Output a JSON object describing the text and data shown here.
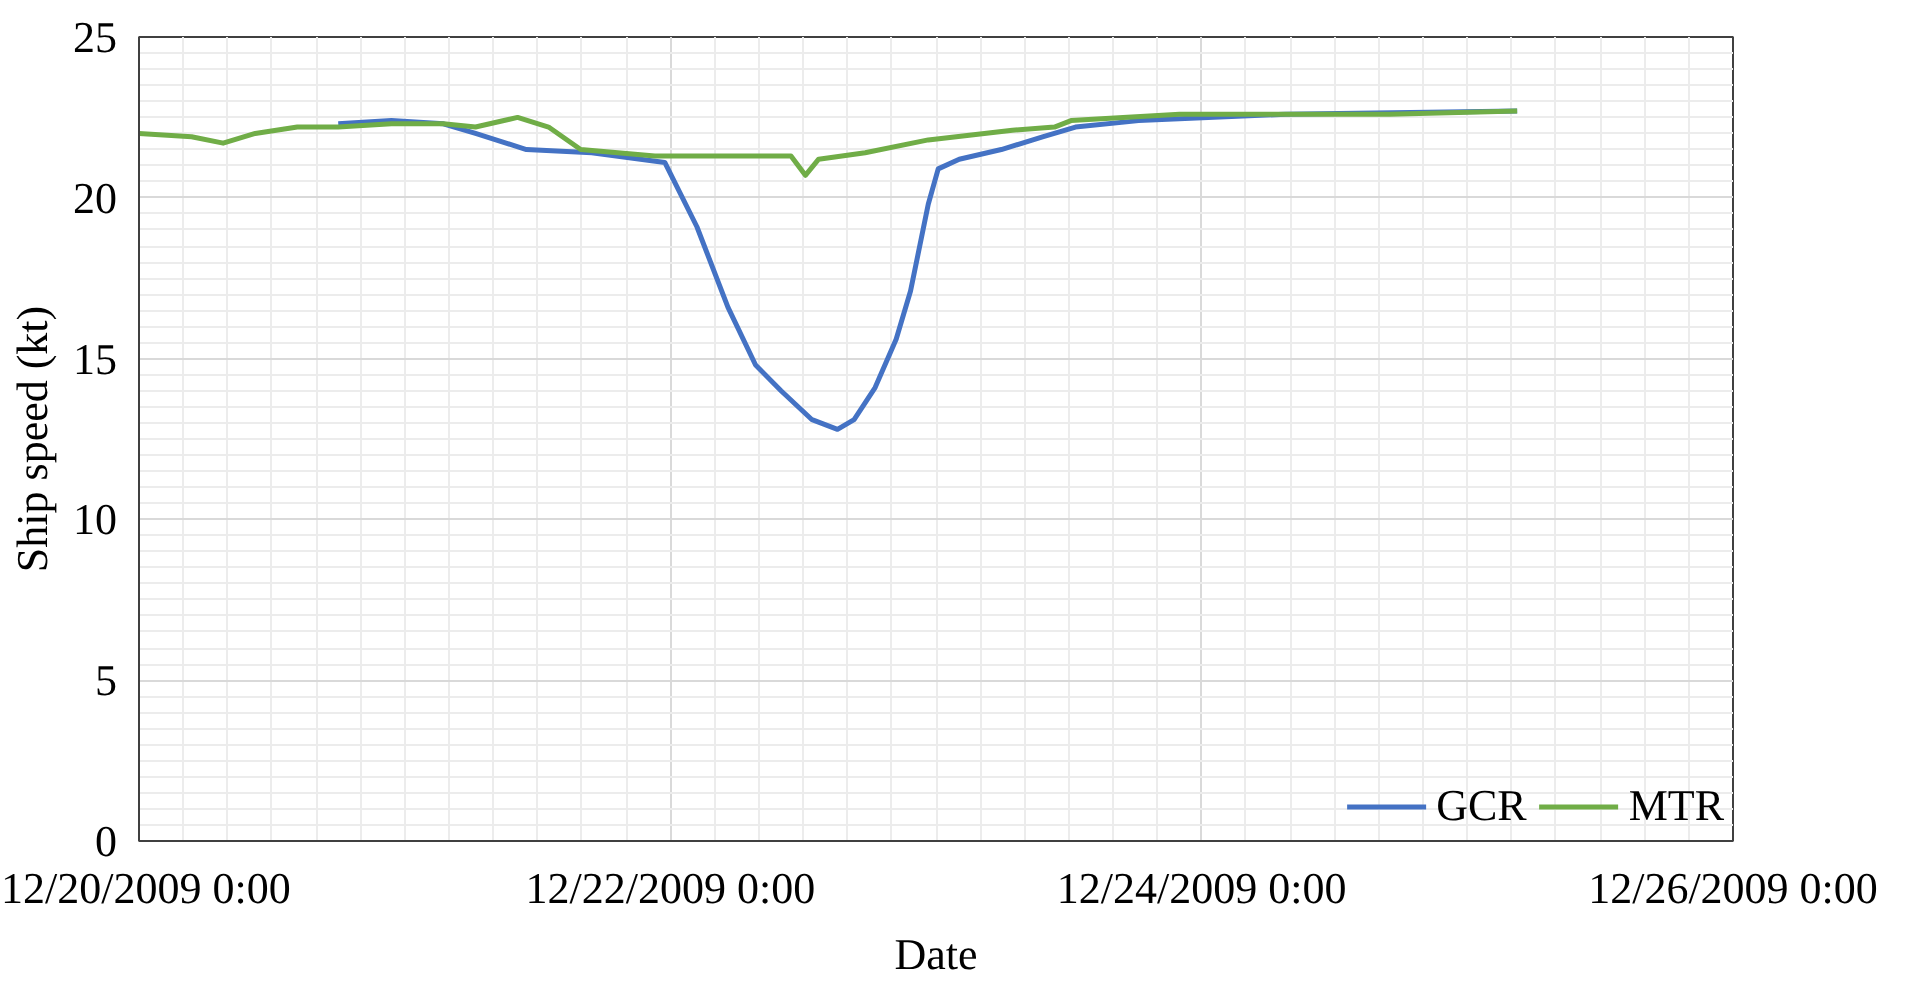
{
  "chart_data": {
    "type": "line",
    "xlabel": "Date",
    "ylabel": "Ship speed (kt)",
    "xlim": [
      "2009-12-20T00:00",
      "2009-12-26T00:00"
    ],
    "xticks": [
      {
        "value": "2009-12-20T00:00",
        "label": "12/20/2009 0:00"
      },
      {
        "value": "2009-12-22T00:00",
        "label": "12/22/2009 0:00"
      },
      {
        "value": "2009-12-24T00:00",
        "label": "12/24/2009 0:00"
      },
      {
        "value": "2009-12-26T00:00",
        "label": "12/26/2009 0:00"
      }
    ],
    "ylim": [
      0,
      25
    ],
    "yticks": [
      0,
      5,
      10,
      15,
      20,
      25
    ],
    "grid": true,
    "legend": "bottom right",
    "line_style": "solid",
    "series": [
      {
        "name": "GCR",
        "color": "#4472c4",
        "x": [
          "2009-12-20T18:00",
          "2009-12-20T22:48",
          "2009-12-21T03:30",
          "2009-12-21T06:24",
          "2009-12-21T11:00",
          "2009-12-21T16:54",
          "2009-12-21T23:30",
          "2009-12-22T02:24",
          "2009-12-22T05:12",
          "2009-12-22T07:42",
          "2009-12-22T10:00",
          "2009-12-22T12:48",
          "2009-12-22T15:06",
          "2009-12-22T16:36",
          "2009-12-22T18:30",
          "2009-12-22T20:24",
          "2009-12-22T21:42",
          "2009-12-22T23:18",
          "2009-12-23T00:12",
          "2009-12-23T02:06",
          "2009-12-23T05:54",
          "2009-12-23T09:42",
          "2009-12-23T12:36",
          "2009-12-23T18:18",
          "2009-12-24T07:36",
          "2009-12-25T04:30"
        ],
        "values": [
          22.3,
          22.4,
          22.3,
          22.0,
          21.5,
          21.4,
          21.1,
          19.1,
          16.6,
          14.8,
          14.0,
          13.1,
          12.8,
          13.1,
          14.1,
          15.6,
          17.1,
          19.8,
          20.9,
          21.2,
          21.5,
          21.9,
          22.2,
          22.4,
          22.6,
          22.7
        ]
      },
      {
        "name": "MTR",
        "color": "#70ad47",
        "x": [
          "2009-12-20T00:00",
          "2009-12-20T04:45",
          "2009-12-20T07:36",
          "2009-12-20T10:30",
          "2009-12-20T14:18",
          "2009-12-20T18:00",
          "2009-12-20T22:48",
          "2009-12-21T03:30",
          "2009-12-21T06:24",
          "2009-12-21T10:12",
          "2009-12-21T13:00",
          "2009-12-21T15:54",
          "2009-12-21T22:36",
          "2009-12-22T06:12",
          "2009-12-22T10:54",
          "2009-12-22T12:12",
          "2009-12-22T13:24",
          "2009-12-22T17:36",
          "2009-12-22T23:18",
          "2009-12-23T06:54",
          "2009-12-23T10:42",
          "2009-12-23T12:12",
          "2009-12-23T22:00",
          "2009-12-24T17:00",
          "2009-12-25T04:30"
        ],
        "values": [
          22.0,
          21.9,
          21.7,
          22.0,
          22.2,
          22.2,
          22.3,
          22.3,
          22.2,
          22.5,
          22.2,
          21.5,
          21.3,
          21.3,
          21.3,
          20.7,
          21.2,
          21.4,
          21.8,
          22.1,
          22.2,
          22.4,
          22.6,
          22.6,
          22.7
        ]
      }
    ]
  }
}
